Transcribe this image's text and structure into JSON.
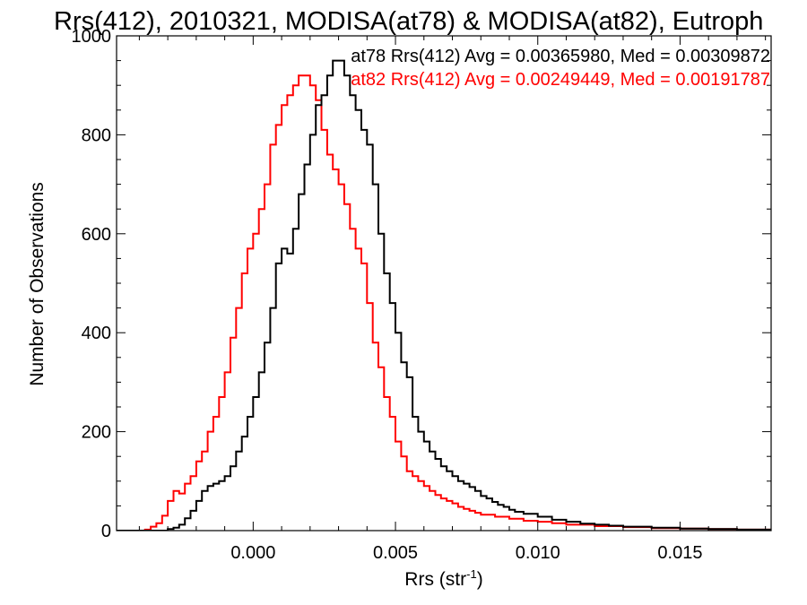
{
  "chart_data": {
    "type": "histogram",
    "title": "Rrs(412), 2010321, MODISA(at78) & MODISA(at82), Eutroph",
    "xlabel": {
      "main": "Rrs (str",
      "sup": "-1",
      "close": ")"
    },
    "ylabel": "Number of Observations",
    "xlim": [
      -0.0048,
      0.0182
    ],
    "ylim": [
      0,
      1000
    ],
    "xticks": [
      0.0,
      0.005,
      0.01,
      0.015
    ],
    "xtick_labels": [
      "0.000",
      "0.005",
      "0.010",
      "0.015"
    ],
    "yticks": [
      0,
      200,
      400,
      600,
      800,
      1000
    ],
    "ytick_labels": [
      "0",
      "200",
      "400",
      "600",
      "800",
      "1000"
    ],
    "grid": false,
    "legend_position": "top-right",
    "colors": {
      "at78": "#000000",
      "at82": "#ff0000",
      "axes": "#000000",
      "background": "#ffffff"
    },
    "series": [
      {
        "name": "at78",
        "legend_text": "at78 Rrs(412) Avg = 0.00365980, Med = 0.00309872",
        "color": "#000000",
        "avg": 0.0036598,
        "median": 0.00309872,
        "points": [
          [
            -0.0048,
            0
          ],
          [
            -0.0035,
            0
          ],
          [
            -0.003,
            3
          ],
          [
            -0.0028,
            6
          ],
          [
            -0.0026,
            12
          ],
          [
            -0.0024,
            25
          ],
          [
            -0.0022,
            40
          ],
          [
            -0.002,
            60
          ],
          [
            -0.0018,
            80
          ],
          [
            -0.0016,
            90
          ],
          [
            -0.0014,
            95
          ],
          [
            -0.0012,
            100
          ],
          [
            -0.001,
            110
          ],
          [
            -0.0008,
            130
          ],
          [
            -0.0006,
            160
          ],
          [
            -0.0004,
            190
          ],
          [
            -0.0002,
            230
          ],
          [
            0.0,
            270
          ],
          [
            0.0002,
            320
          ],
          [
            0.0004,
            380
          ],
          [
            0.0006,
            450
          ],
          [
            0.0008,
            540
          ],
          [
            0.001,
            570
          ],
          [
            0.0012,
            560
          ],
          [
            0.0014,
            610
          ],
          [
            0.0016,
            680
          ],
          [
            0.0018,
            740
          ],
          [
            0.002,
            800
          ],
          [
            0.0022,
            860
          ],
          [
            0.0024,
            880
          ],
          [
            0.0026,
            920
          ],
          [
            0.0028,
            950
          ],
          [
            0.003,
            950
          ],
          [
            0.0032,
            920
          ],
          [
            0.0034,
            880
          ],
          [
            0.0036,
            850
          ],
          [
            0.0038,
            810
          ],
          [
            0.004,
            780
          ],
          [
            0.0042,
            700
          ],
          [
            0.0044,
            600
          ],
          [
            0.0046,
            520
          ],
          [
            0.0048,
            460
          ],
          [
            0.005,
            400
          ],
          [
            0.0052,
            340
          ],
          [
            0.0054,
            310
          ],
          [
            0.0056,
            230
          ],
          [
            0.0058,
            200
          ],
          [
            0.006,
            180
          ],
          [
            0.0062,
            160
          ],
          [
            0.0064,
            145
          ],
          [
            0.0066,
            130
          ],
          [
            0.0068,
            120
          ],
          [
            0.007,
            110
          ],
          [
            0.0072,
            100
          ],
          [
            0.0074,
            95
          ],
          [
            0.0076,
            88
          ],
          [
            0.0078,
            80
          ],
          [
            0.008,
            70
          ],
          [
            0.0082,
            65
          ],
          [
            0.0084,
            58
          ],
          [
            0.0086,
            52
          ],
          [
            0.0088,
            48
          ],
          [
            0.009,
            42
          ],
          [
            0.0092,
            38
          ],
          [
            0.0095,
            34
          ],
          [
            0.01,
            28
          ],
          [
            0.0105,
            22
          ],
          [
            0.011,
            18
          ],
          [
            0.0115,
            14
          ],
          [
            0.012,
            12
          ],
          [
            0.0125,
            10
          ],
          [
            0.013,
            8
          ],
          [
            0.014,
            6
          ],
          [
            0.015,
            4
          ],
          [
            0.016,
            3
          ],
          [
            0.017,
            2
          ],
          [
            0.0182,
            1
          ]
        ]
      },
      {
        "name": "at82",
        "legend_text": "at82 Rrs(412) Avg = 0.00249449, Med = 0.00191787",
        "color": "#ff0000",
        "avg": 0.00249449,
        "median": 0.00191787,
        "points": [
          [
            -0.0048,
            0
          ],
          [
            -0.0042,
            0
          ],
          [
            -0.0038,
            2
          ],
          [
            -0.0036,
            8
          ],
          [
            -0.0034,
            15
          ],
          [
            -0.0032,
            30
          ],
          [
            -0.003,
            60
          ],
          [
            -0.0028,
            80
          ],
          [
            -0.0026,
            75
          ],
          [
            -0.0024,
            95
          ],
          [
            -0.0022,
            110
          ],
          [
            -0.002,
            140
          ],
          [
            -0.0018,
            160
          ],
          [
            -0.0016,
            200
          ],
          [
            -0.0014,
            230
          ],
          [
            -0.0012,
            270
          ],
          [
            -0.001,
            320
          ],
          [
            -0.0008,
            390
          ],
          [
            -0.0006,
            450
          ],
          [
            -0.0004,
            520
          ],
          [
            -0.0002,
            570
          ],
          [
            0.0,
            600
          ],
          [
            0.0002,
            650
          ],
          [
            0.0004,
            700
          ],
          [
            0.0006,
            780
          ],
          [
            0.0008,
            820
          ],
          [
            0.001,
            860
          ],
          [
            0.0012,
            880
          ],
          [
            0.0014,
            900
          ],
          [
            0.0016,
            920
          ],
          [
            0.0018,
            920
          ],
          [
            0.002,
            900
          ],
          [
            0.0022,
            870
          ],
          [
            0.0024,
            810
          ],
          [
            0.0026,
            760
          ],
          [
            0.0028,
            730
          ],
          [
            0.003,
            700
          ],
          [
            0.0032,
            660
          ],
          [
            0.0034,
            610
          ],
          [
            0.0036,
            570
          ],
          [
            0.0038,
            540
          ],
          [
            0.004,
            460
          ],
          [
            0.0042,
            380
          ],
          [
            0.0044,
            330
          ],
          [
            0.0046,
            270
          ],
          [
            0.0048,
            230
          ],
          [
            0.005,
            180
          ],
          [
            0.0052,
            150
          ],
          [
            0.0054,
            120
          ],
          [
            0.0056,
            110
          ],
          [
            0.0058,
            100
          ],
          [
            0.006,
            90
          ],
          [
            0.0062,
            80
          ],
          [
            0.0064,
            72
          ],
          [
            0.0066,
            65
          ],
          [
            0.0068,
            60
          ],
          [
            0.007,
            55
          ],
          [
            0.0072,
            48
          ],
          [
            0.0074,
            44
          ],
          [
            0.0076,
            40
          ],
          [
            0.0078,
            36
          ],
          [
            0.008,
            32
          ],
          [
            0.0085,
            28
          ],
          [
            0.009,
            24
          ],
          [
            0.0095,
            20
          ],
          [
            0.01,
            18
          ],
          [
            0.0105,
            15
          ],
          [
            0.011,
            12
          ],
          [
            0.012,
            9
          ],
          [
            0.013,
            7
          ],
          [
            0.014,
            5
          ],
          [
            0.015,
            4
          ],
          [
            0.016,
            3
          ],
          [
            0.017,
            2
          ],
          [
            0.0182,
            1
          ]
        ]
      }
    ]
  }
}
